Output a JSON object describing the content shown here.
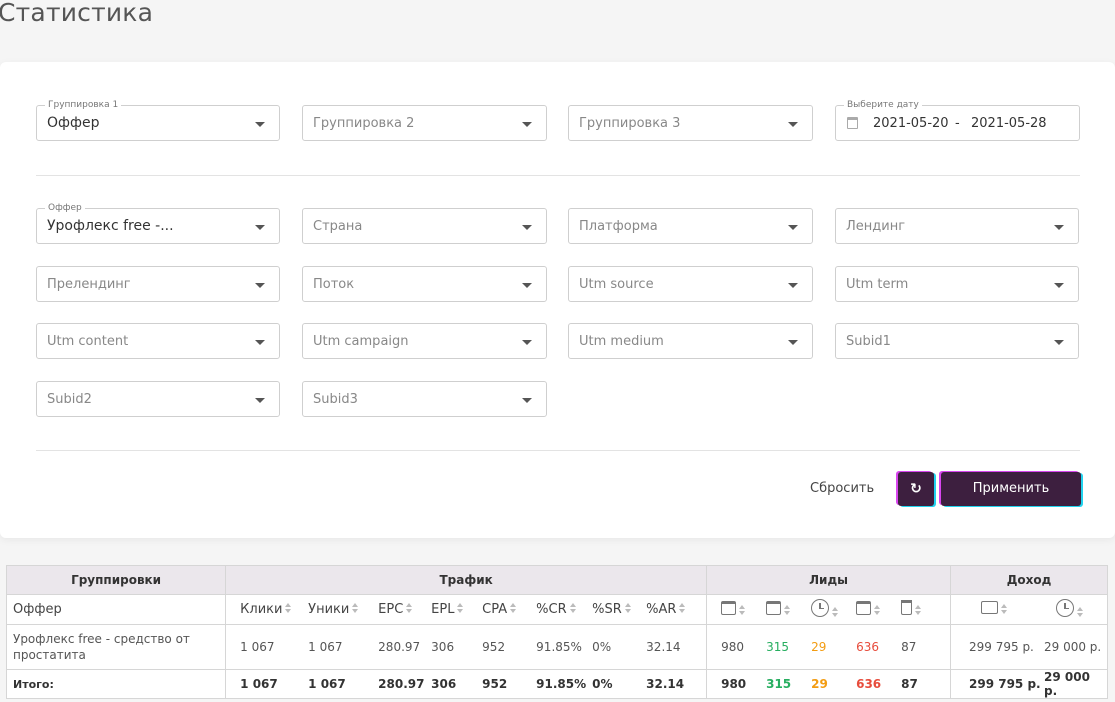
{
  "page": {
    "title": "Статистика"
  },
  "grouping": {
    "g1": {
      "legend": "Группировка 1",
      "value": "Оффер"
    },
    "g2": {
      "placeholder": "Группировка 2"
    },
    "g3": {
      "placeholder": "Группировка 3"
    },
    "date": {
      "legend": "Выберите дату",
      "from": "2021-05-20",
      "separator": "-",
      "to": "2021-05-28"
    }
  },
  "filters": {
    "offer": {
      "legend": "Оффер",
      "value": "Урофлекс free -..."
    },
    "country": "Страна",
    "platform": "Платформа",
    "landing": "Лендинг",
    "prelanding": "Прелендинг",
    "stream": "Поток",
    "utm_source": "Utm source",
    "utm_term": "Utm term",
    "utm_content": "Utm content",
    "utm_campaign": "Utm campaign",
    "utm_medium": "Utm medium",
    "subid1": "Subid1",
    "subid2": "Subid2",
    "subid3": "Subid3"
  },
  "actions": {
    "reset": "Сбросить",
    "apply": "Применить"
  },
  "table": {
    "groups": {
      "grouping": "Группировки",
      "traffic": "Трафик",
      "leads": "Лиды",
      "income": "Доход"
    },
    "columns": {
      "offer": "Оффер",
      "clicks": "Клики",
      "uniques": "Уники",
      "epc": "EPC",
      "epl": "EPL",
      "cpa": "CPA",
      "cr": "%CR",
      "sr": "%SR",
      "ar": "%AR"
    },
    "row": {
      "offer": "Урофлекс free - средство от простатита",
      "clicks": "1 067",
      "uniques": "1 067",
      "epc": "280.97",
      "epl": "306",
      "cpa": "952",
      "cr": "91.85%",
      "sr": "0%",
      "ar": "32.14",
      "leads_new": "980",
      "leads_approved": "315",
      "leads_hold": "29",
      "leads_rejected": "636",
      "leads_trash": "87",
      "income_confirmed": "299 795 р.",
      "income_hold": "29 000 р."
    },
    "total": {
      "label": "Итого:",
      "clicks": "1 067",
      "uniques": "1 067",
      "epc": "280.97",
      "epl": "306",
      "cpa": "952",
      "cr": "91.85%",
      "sr": "0%",
      "ar": "32.14",
      "leads_new": "980",
      "leads_approved": "315",
      "leads_hold": "29",
      "leads_rejected": "636",
      "leads_trash": "87",
      "income_confirmed": "299 795 р.",
      "income_hold": "29 000 р."
    }
  },
  "colors": {
    "accent": "#3d1f3f",
    "approved": "#27ae60",
    "hold": "#f39c12",
    "rejected": "#e74c3c"
  }
}
